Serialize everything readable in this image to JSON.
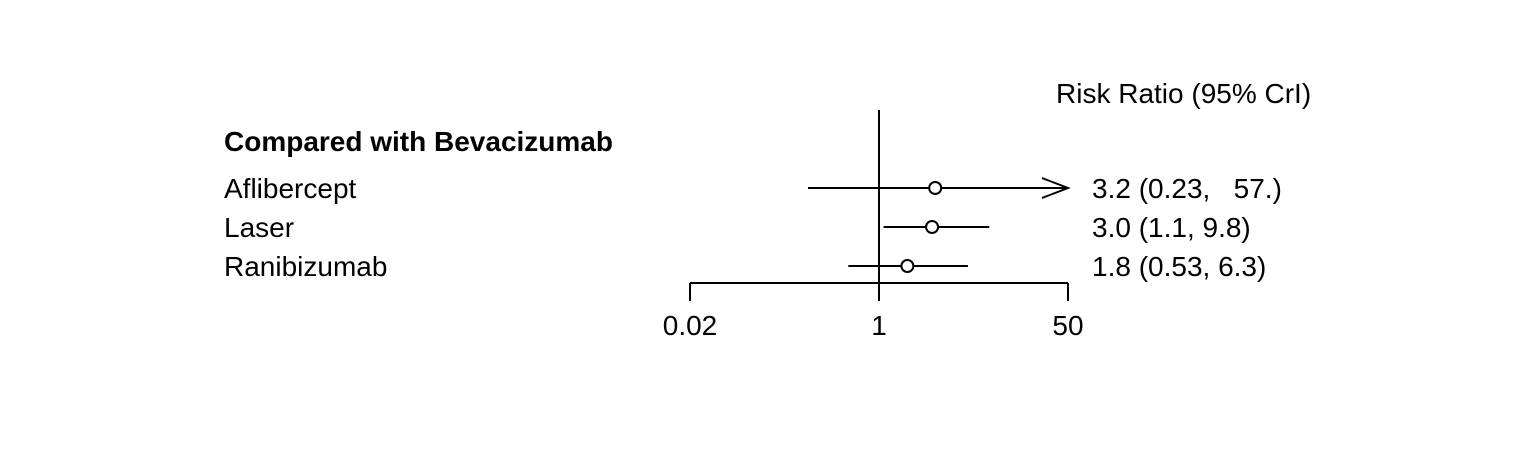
{
  "chart_data": {
    "type": "forest",
    "title": "",
    "column_header": "Risk Ratio (95% CrI)",
    "group_label": "Compared with Bevacizumab",
    "scale": "log",
    "xlim": [
      0.02,
      50
    ],
    "x_ticks": [
      {
        "value": 0.02,
        "label": "0.02"
      },
      {
        "value": 1,
        "label": "1"
      },
      {
        "value": 50,
        "label": "50"
      }
    ],
    "reference_line": 1,
    "rows": [
      {
        "name": "Aflibercept",
        "estimate": 3.2,
        "lower": 0.23,
        "upper": 57,
        "upper_truncated": true,
        "label": "3.2 (0.23,   57.)"
      },
      {
        "name": "Laser",
        "estimate": 3.0,
        "lower": 1.1,
        "upper": 9.8,
        "upper_truncated": false,
        "label": "3.0 (1.1, 9.8)"
      },
      {
        "name": "Ranibizumab",
        "estimate": 1.8,
        "lower": 0.53,
        "upper": 6.3,
        "upper_truncated": false,
        "label": "1.8 (0.53, 6.3)"
      }
    ]
  }
}
